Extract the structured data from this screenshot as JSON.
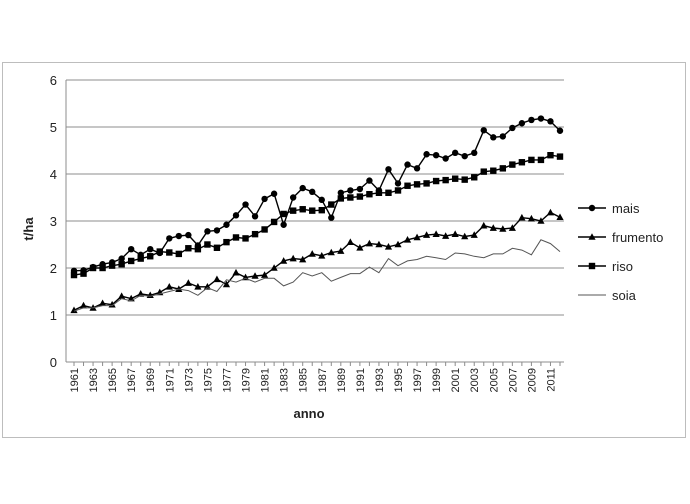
{
  "chart_data": {
    "type": "line",
    "title": "",
    "xlabel": "anno",
    "ylabel": "t/ha",
    "ylim": [
      0,
      6
    ],
    "yticks": [
      "0",
      "1",
      "2",
      "3",
      "4",
      "5",
      "6"
    ],
    "xtick_labels": [
      "1961",
      "1963",
      "1965",
      "1967",
      "1969",
      "1971",
      "1973",
      "1975",
      "1977",
      "1979",
      "1981",
      "1983",
      "1985",
      "1987",
      "1989",
      "1991",
      "1993",
      "1995",
      "1997",
      "1999",
      "2001",
      "2003",
      "2005",
      "2007",
      "2009",
      "2011"
    ],
    "grid": "horizontal",
    "legend": "right",
    "x": [
      1961,
      1962,
      1963,
      1964,
      1965,
      1966,
      1967,
      1968,
      1969,
      1970,
      1971,
      1972,
      1973,
      1974,
      1975,
      1976,
      1977,
      1978,
      1979,
      1980,
      1981,
      1982,
      1983,
      1984,
      1985,
      1986,
      1987,
      1988,
      1989,
      1990,
      1991,
      1992,
      1993,
      1994,
      1995,
      1996,
      1997,
      1998,
      1999,
      2000,
      2001,
      2002,
      2003,
      2004,
      2005,
      2006,
      2007,
      2008,
      2009,
      2010,
      2011,
      2012
    ],
    "series": [
      {
        "name": "mais",
        "marker": "circle",
        "color": "#000000",
        "values": [
          1.94,
          1.95,
          2.02,
          2.08,
          2.12,
          2.2,
          2.4,
          2.28,
          2.4,
          2.32,
          2.63,
          2.68,
          2.7,
          2.48,
          2.78,
          2.8,
          2.92,
          3.12,
          3.35,
          3.1,
          3.47,
          3.58,
          2.92,
          3.5,
          3.7,
          3.62,
          3.45,
          3.07,
          3.6,
          3.65,
          3.68,
          3.86,
          3.65,
          4.1,
          3.8,
          4.2,
          4.12,
          4.42,
          4.4,
          4.33,
          4.45,
          4.38,
          4.45,
          4.93,
          4.78,
          4.8,
          4.98,
          5.08,
          5.15,
          5.18,
          5.12,
          4.92
        ]
      },
      {
        "name": "frumento",
        "marker": "triangle",
        "color": "#000000",
        "values": [
          1.1,
          1.2,
          1.15,
          1.25,
          1.22,
          1.4,
          1.35,
          1.45,
          1.42,
          1.48,
          1.6,
          1.55,
          1.68,
          1.6,
          1.6,
          1.76,
          1.65,
          1.9,
          1.8,
          1.83,
          1.85,
          2.0,
          2.15,
          2.2,
          2.18,
          2.3,
          2.26,
          2.33,
          2.36,
          2.55,
          2.43,
          2.52,
          2.5,
          2.45,
          2.5,
          2.6,
          2.65,
          2.7,
          2.72,
          2.68,
          2.72,
          2.67,
          2.7,
          2.9,
          2.85,
          2.83,
          2.85,
          3.07,
          3.05,
          3.0,
          3.18,
          3.08
        ]
      },
      {
        "name": "riso",
        "marker": "square",
        "color": "#000000",
        "values": [
          1.85,
          1.88,
          2.0,
          2.0,
          2.05,
          2.08,
          2.15,
          2.2,
          2.25,
          2.35,
          2.33,
          2.3,
          2.42,
          2.4,
          2.5,
          2.43,
          2.55,
          2.65,
          2.63,
          2.72,
          2.82,
          2.98,
          3.15,
          3.22,
          3.25,
          3.22,
          3.23,
          3.35,
          3.48,
          3.5,
          3.52,
          3.57,
          3.6,
          3.6,
          3.65,
          3.75,
          3.78,
          3.8,
          3.85,
          3.87,
          3.9,
          3.88,
          3.93,
          4.05,
          4.07,
          4.12,
          4.2,
          4.25,
          4.3,
          4.3,
          4.4,
          4.37
        ]
      },
      {
        "name": "soia",
        "marker": "none",
        "color": "#555555",
        "values": [
          1.08,
          1.15,
          1.15,
          1.2,
          1.2,
          1.35,
          1.3,
          1.42,
          1.4,
          1.45,
          1.5,
          1.55,
          1.52,
          1.42,
          1.58,
          1.5,
          1.75,
          1.7,
          1.78,
          1.7,
          1.78,
          1.78,
          1.62,
          1.7,
          1.9,
          1.83,
          1.9,
          1.72,
          1.8,
          1.88,
          1.88,
          2.02,
          1.9,
          2.2,
          2.05,
          2.15,
          2.18,
          2.25,
          2.22,
          2.18,
          2.32,
          2.3,
          2.25,
          2.22,
          2.3,
          2.3,
          2.42,
          2.38,
          2.28,
          2.6,
          2.52,
          2.35
        ]
      }
    ]
  }
}
